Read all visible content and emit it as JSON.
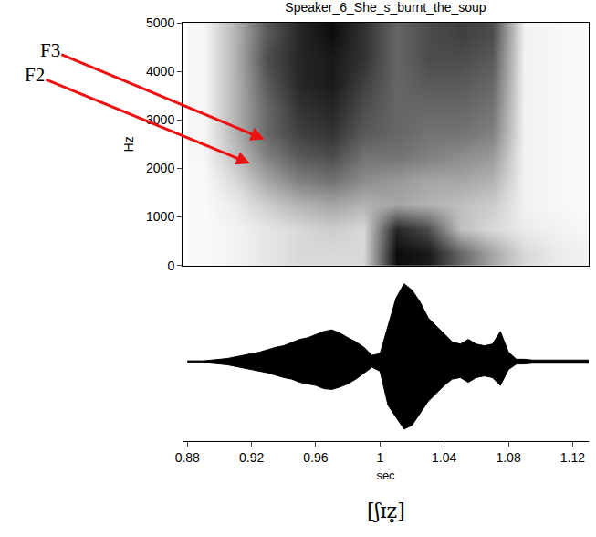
{
  "chart_data": [
    {
      "type": "heatmap",
      "title": "Speaker_6_She_s_burnt_the_soup",
      "y_label": "Hz",
      "x": [
        0.89,
        0.91,
        0.93,
        0.95,
        0.97,
        0.99,
        1.01,
        1.03,
        1.05,
        1.07,
        1.09,
        1.11,
        1.13
      ],
      "y": [
        250,
        750,
        1250,
        1750,
        2250,
        2750,
        3250,
        3750,
        4250,
        4750
      ],
      "z": [
        [
          0.02,
          0.05,
          0.1,
          0.15,
          0.15,
          0.15,
          0.95,
          0.9,
          0.6,
          0.35,
          0.15,
          0.08,
          0.05
        ],
        [
          0.02,
          0.05,
          0.1,
          0.15,
          0.2,
          0.15,
          0.85,
          0.7,
          0.25,
          0.15,
          0.08,
          0.05,
          0.03
        ],
        [
          0.02,
          0.08,
          0.2,
          0.3,
          0.35,
          0.3,
          0.35,
          0.3,
          0.25,
          0.2,
          0.05,
          0.03,
          0.02
        ],
        [
          0.02,
          0.15,
          0.35,
          0.5,
          0.55,
          0.45,
          0.4,
          0.35,
          0.35,
          0.3,
          0.05,
          0.03,
          0.02
        ],
        [
          0.03,
          0.25,
          0.5,
          0.65,
          0.7,
          0.55,
          0.55,
          0.5,
          0.45,
          0.4,
          0.05,
          0.03,
          0.02
        ],
        [
          0.03,
          0.3,
          0.6,
          0.75,
          0.8,
          0.65,
          0.6,
          0.55,
          0.55,
          0.5,
          0.05,
          0.03,
          0.02
        ],
        [
          0.03,
          0.3,
          0.6,
          0.8,
          0.85,
          0.7,
          0.6,
          0.6,
          0.6,
          0.55,
          0.05,
          0.03,
          0.02
        ],
        [
          0.03,
          0.3,
          0.65,
          0.85,
          0.9,
          0.75,
          0.6,
          0.65,
          0.65,
          0.6,
          0.05,
          0.03,
          0.02
        ],
        [
          0.03,
          0.3,
          0.7,
          0.85,
          0.9,
          0.8,
          0.6,
          0.7,
          0.7,
          0.65,
          0.05,
          0.03,
          0.02
        ],
        [
          0.03,
          0.3,
          0.65,
          0.85,
          0.95,
          0.8,
          0.6,
          0.7,
          0.75,
          0.7,
          0.05,
          0.03,
          0.02
        ]
      ],
      "zlim": [
        0,
        1
      ],
      "xlim": [
        0.877,
        1.13
      ],
      "ylim": [
        0,
        5000
      ],
      "yticks": [
        0,
        1000,
        2000,
        3000,
        4000,
        5000
      ],
      "tick_labels": "y",
      "annotations": [
        {
          "text": "F3",
          "x": 0.928,
          "y": 2600
        },
        {
          "text": "F2",
          "x": 0.919,
          "y": 2100
        }
      ]
    },
    {
      "type": "waveform",
      "x_label": "sec",
      "x": [
        0.88,
        0.885,
        0.89,
        0.895,
        0.9,
        0.905,
        0.91,
        0.915,
        0.92,
        0.925,
        0.93,
        0.935,
        0.94,
        0.945,
        0.95,
        0.955,
        0.96,
        0.965,
        0.97,
        0.975,
        0.98,
        0.985,
        0.99,
        0.995,
        1.0,
        1.005,
        1.01,
        1.015,
        1.02,
        1.025,
        1.03,
        1.035,
        1.04,
        1.045,
        1.05,
        1.055,
        1.06,
        1.065,
        1.07,
        1.075,
        1.08,
        1.085,
        1.09,
        1.095,
        1.1,
        1.105,
        1.11,
        1.115,
        1.12,
        1.125,
        1.13
      ],
      "max": [
        0.01,
        0.01,
        0.01,
        0.02,
        0.03,
        0.04,
        0.06,
        0.08,
        0.1,
        0.12,
        0.15,
        0.18,
        0.2,
        0.24,
        0.28,
        0.3,
        0.34,
        0.38,
        0.4,
        0.36,
        0.3,
        0.25,
        0.18,
        0.08,
        0.1,
        0.45,
        0.8,
        0.98,
        0.9,
        0.75,
        0.55,
        0.45,
        0.35,
        0.25,
        0.22,
        0.28,
        0.22,
        0.2,
        0.22,
        0.38,
        0.12,
        0.03,
        0.03,
        0.02,
        0.02,
        0.02,
        0.02,
        0.02,
        0.02,
        0.02,
        0.02
      ],
      "min": [
        -0.01,
        -0.01,
        -0.01,
        -0.02,
        -0.03,
        -0.04,
        -0.06,
        -0.08,
        -0.1,
        -0.12,
        -0.14,
        -0.17,
        -0.2,
        -0.22,
        -0.26,
        -0.28,
        -0.3,
        -0.34,
        -0.35,
        -0.32,
        -0.28,
        -0.22,
        -0.15,
        -0.07,
        -0.12,
        -0.55,
        -0.7,
        -0.85,
        -0.8,
        -0.65,
        -0.5,
        -0.4,
        -0.3,
        -0.22,
        -0.2,
        -0.26,
        -0.2,
        -0.18,
        -0.2,
        -0.3,
        -0.1,
        -0.03,
        -0.03,
        -0.02,
        -0.02,
        -0.02,
        -0.02,
        -0.02,
        -0.02,
        -0.02,
        -0.02
      ],
      "xlim": [
        0.877,
        1.13
      ],
      "xticks": [
        0.88,
        0.92,
        0.96,
        1,
        1.04,
        1.08,
        1.12
      ],
      "ylim": [
        -1,
        1
      ],
      "tick_labels": "x",
      "color": "#000000"
    }
  ],
  "caption": "[ʃɪz̥]"
}
